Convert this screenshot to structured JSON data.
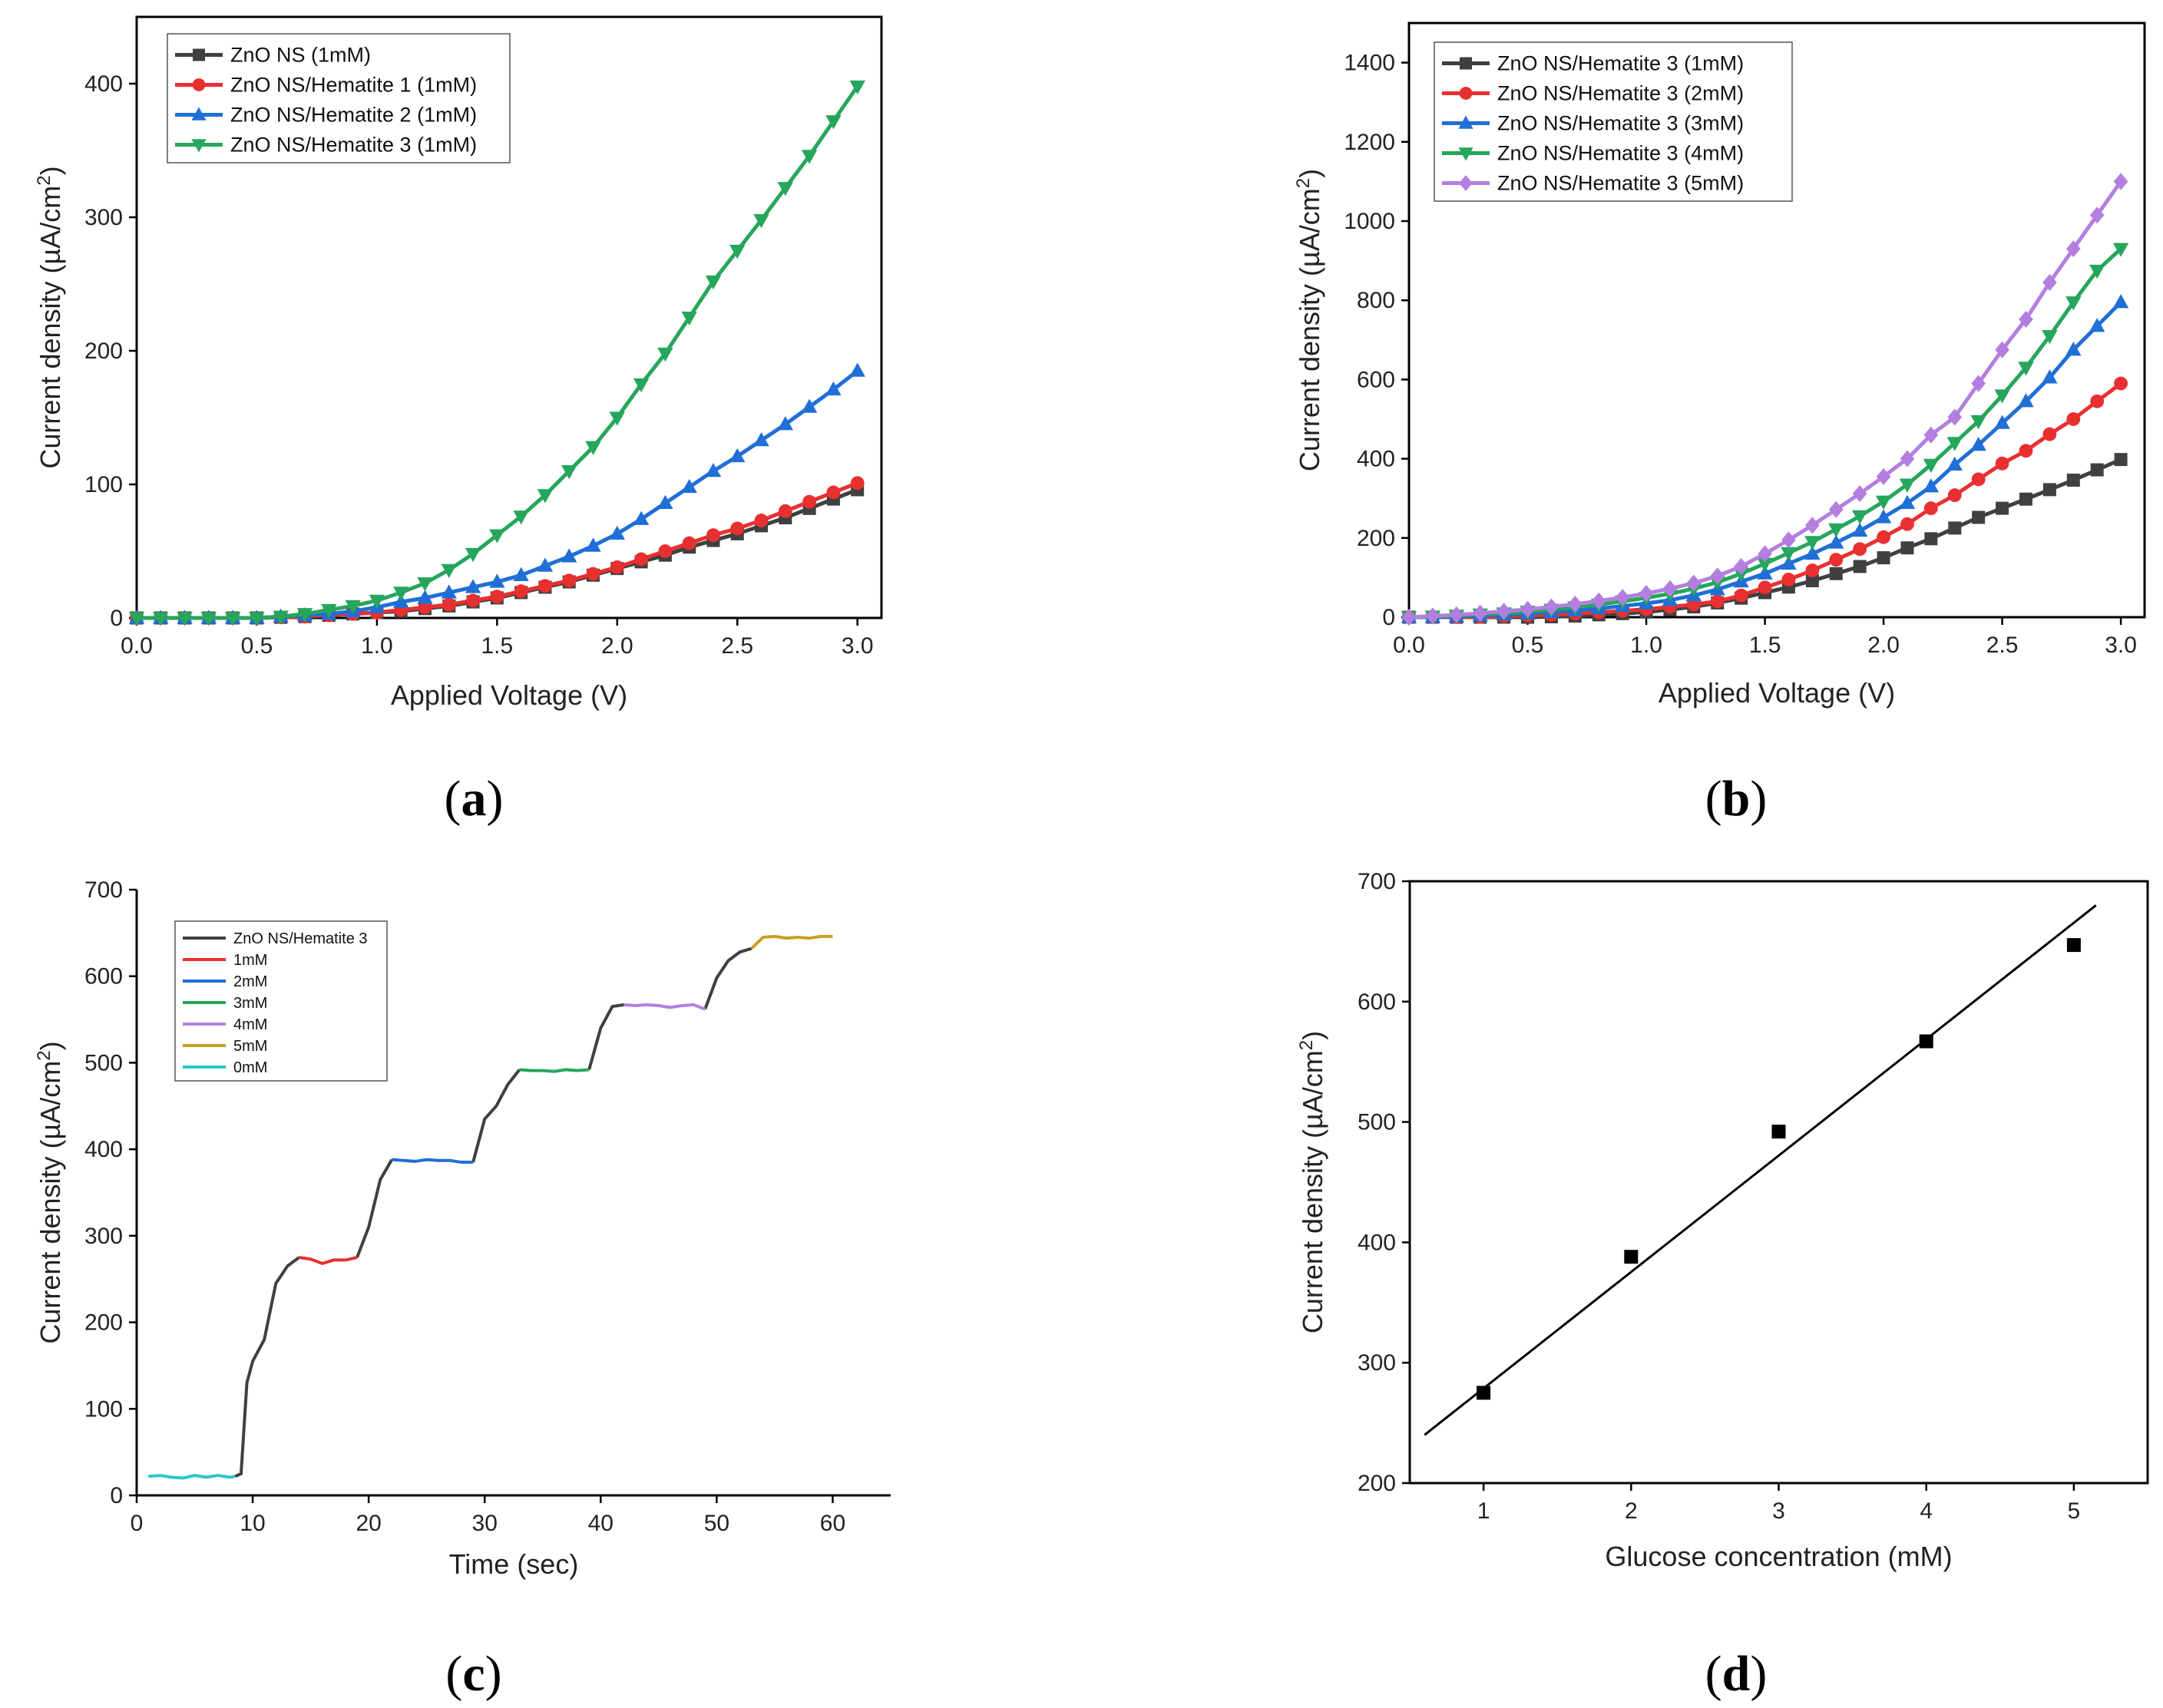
{
  "figure": {
    "panel_labels": [
      {
        "open": "(",
        "letter": "a",
        "close": ")"
      },
      {
        "open": "(",
        "letter": "b",
        "close": ")"
      },
      {
        "open": "(",
        "letter": "c",
        "close": ")"
      },
      {
        "open": "(",
        "letter": "d",
        "close": ")"
      }
    ]
  },
  "chart_data": [
    {
      "id": "a",
      "type": "line",
      "xlabel": "Applied Voltage (V)",
      "ylabel": "Current density (µA/cm²)",
      "xlim": [
        0,
        3.1
      ],
      "ylim": [
        0,
        450
      ],
      "xticks": [
        0.0,
        0.5,
        1.0,
        1.5,
        2.0,
        2.5,
        3.0
      ],
      "xtick_labels": [
        "0.0",
        "0.5",
        "1.0",
        "1.5",
        "2.0",
        "2.5",
        "3.0"
      ],
      "yticks": [
        0,
        100,
        200,
        300,
        400
      ],
      "ytick_labels": [
        "0",
        "100",
        "200",
        "300",
        "400"
      ],
      "legend_position": "top-left",
      "x": [
        0.0,
        0.1,
        0.2,
        0.3,
        0.4,
        0.5,
        0.6,
        0.7,
        0.8,
        0.9,
        1.0,
        1.1,
        1.2,
        1.3,
        1.4,
        1.5,
        1.6,
        1.7,
        1.8,
        1.9,
        2.0,
        2.1,
        2.2,
        2.3,
        2.4,
        2.5,
        2.6,
        2.7,
        2.8,
        2.9,
        3.0
      ],
      "series": [
        {
          "name": "ZnO NS (1mM)",
          "color": "#404040",
          "marker": "square",
          "values": [
            0,
            0,
            0,
            0,
            0,
            0,
            0.5,
            1,
            2,
            3,
            4,
            5,
            7,
            9,
            12,
            15,
            19,
            23,
            27,
            32,
            37,
            42,
            47,
            53,
            58,
            63,
            69,
            75,
            82,
            89,
            96
          ]
        },
        {
          "name": "ZnO NS/Hematite 1 (1mM)",
          "color": "#e83030",
          "marker": "circle",
          "values": [
            0,
            0,
            0,
            0,
            0,
            0,
            0.5,
            1,
            2,
            3,
            4,
            6,
            8,
            10,
            13,
            16,
            20,
            24,
            28,
            33,
            38,
            44,
            50,
            56,
            62,
            67,
            73,
            80,
            87,
            94,
            101
          ]
        },
        {
          "name": "ZnO NS/Hematite 2 (1mM)",
          "color": "#1f6fd6",
          "marker": "triangle-up",
          "values": [
            0,
            0,
            0,
            0,
            0,
            0,
            1,
            2,
            3,
            5,
            8,
            12,
            15,
            19,
            23,
            27,
            32,
            39,
            46,
            54,
            63,
            74,
            86,
            98,
            110,
            121,
            133,
            145,
            158,
            171,
            185
          ]
        },
        {
          "name": "ZnO NS/Hematite 3 (1mM)",
          "color": "#26a65b",
          "marker": "triangle-down",
          "values": [
            0,
            0,
            0,
            0,
            0,
            0,
            1,
            3,
            6,
            9,
            13,
            19,
            26,
            36,
            48,
            62,
            76,
            92,
            110,
            128,
            150,
            175,
            198,
            225,
            252,
            275,
            298,
            322,
            346,
            372,
            398
          ]
        }
      ]
    },
    {
      "id": "b",
      "type": "line",
      "xlabel": "Applied Voltage (V)",
      "ylabel": "Current density (µA/cm²)",
      "xlim": [
        0,
        3.1
      ],
      "ylim": [
        0,
        1500
      ],
      "xticks": [
        0.0,
        0.5,
        1.0,
        1.5,
        2.0,
        2.5,
        3.0
      ],
      "xtick_labels": [
        "0.0",
        "0.5",
        "1.0",
        "1.5",
        "2.0",
        "2.5",
        "3.0"
      ],
      "yticks": [
        0,
        200,
        400,
        600,
        800,
        1000,
        1200,
        1400
      ],
      "ytick_labels": [
        "0",
        "200",
        "400",
        "600",
        "800",
        "1000",
        "1200",
        "1400"
      ],
      "legend_position": "top-left",
      "x": [
        0.0,
        0.1,
        0.2,
        0.3,
        0.4,
        0.5,
        0.6,
        0.7,
        0.8,
        0.9,
        1.0,
        1.1,
        1.2,
        1.3,
        1.4,
        1.5,
        1.6,
        1.7,
        1.8,
        1.9,
        2.0,
        2.1,
        2.2,
        2.3,
        2.4,
        2.5,
        2.6,
        2.7,
        2.8,
        2.9,
        3.0
      ],
      "series": [
        {
          "name": "ZnO NS/Hematite 3 (1mM)",
          "color": "#404040",
          "marker": "square",
          "values": [
            0,
            0,
            0,
            0,
            0,
            0,
            1,
            3,
            6,
            9,
            13,
            19,
            26,
            36,
            48,
            62,
            76,
            92,
            110,
            128,
            150,
            175,
            198,
            225,
            252,
            275,
            298,
            322,
            346,
            372,
            398
          ]
        },
        {
          "name": "ZnO NS/Hematite 3 (2mM)",
          "color": "#e83030",
          "marker": "circle",
          "values": [
            0,
            0,
            0,
            1,
            2,
            4,
            6,
            9,
            12,
            16,
            20,
            26,
            32,
            40,
            55,
            75,
            95,
            118,
            145,
            172,
            202,
            235,
            275,
            308,
            348,
            388,
            420,
            462,
            500,
            545,
            590
          ]
        },
        {
          "name": "ZnO NS/Hematite 3 (3mM)",
          "color": "#1f6fd6",
          "marker": "triangle-up",
          "values": [
            0,
            0,
            2,
            4,
            6,
            9,
            13,
            17,
            22,
            28,
            35,
            43,
            55,
            70,
            90,
            110,
            135,
            160,
            188,
            218,
            252,
            288,
            330,
            385,
            435,
            490,
            545,
            605,
            675,
            735,
            795
          ]
        },
        {
          "name": "ZnO NS/Hematite 3 (4mM)",
          "color": "#26a65b",
          "marker": "triangle-down",
          "values": [
            0,
            2,
            4,
            7,
            10,
            14,
            19,
            25,
            32,
            40,
            49,
            59,
            72,
            88,
            110,
            135,
            162,
            190,
            222,
            255,
            292,
            335,
            385,
            440,
            495,
            560,
            630,
            710,
            795,
            875,
            930
          ]
        },
        {
          "name": "ZnO NS/Hematite 3 (5mM)",
          "color": "#b47ee0",
          "marker": "diamond",
          "values": [
            0,
            3,
            6,
            10,
            15,
            20,
            26,
            33,
            41,
            50,
            60,
            72,
            86,
            104,
            128,
            160,
            195,
            232,
            272,
            312,
            355,
            400,
            460,
            505,
            590,
            675,
            752,
            845,
            930,
            1015,
            1100
          ]
        }
      ]
    },
    {
      "id": "c",
      "type": "line",
      "xlabel": "Time (sec)",
      "ylabel": "Current density (µA/cm²)",
      "xlim": [
        0,
        65
      ],
      "ylim": [
        0,
        700
      ],
      "xticks": [
        0,
        10,
        20,
        30,
        40,
        50,
        60
      ],
      "xtick_labels": [
        "0",
        "10",
        "20",
        "30",
        "40",
        "50",
        "60"
      ],
      "yticks": [
        0,
        100,
        200,
        300,
        400,
        500,
        600,
        700
      ],
      "ytick_labels": [
        "0",
        "100",
        "200",
        "300",
        "400",
        "500",
        "600",
        "700"
      ],
      "legend_position": "top-left",
      "series": [
        {
          "name": "ZnO NS/Hematite 3",
          "color": "#404040",
          "segments": [
            {
              "x": [
                8.5,
                9,
                9.5,
                10,
                11,
                12,
                13,
                14
              ],
              "y": [
                22,
                25,
                130,
                155,
                180,
                245,
                265,
                275
              ]
            },
            {
              "x": [
                19,
                20,
                21,
                22
              ],
              "y": [
                275,
                310,
                365,
                388
              ]
            },
            {
              "x": [
                29,
                30,
                31,
                32,
                33
              ],
              "y": [
                385,
                435,
                450,
                475,
                492
              ]
            },
            {
              "x": [
                39,
                40,
                41,
                42
              ],
              "y": [
                492,
                540,
                565,
                567
              ]
            },
            {
              "x": [
                49,
                50,
                51,
                52,
                53
              ],
              "y": [
                562,
                598,
                618,
                628,
                632
              ]
            }
          ]
        },
        {
          "name": "1mM",
          "color": "#e83030",
          "segments": [
            {
              "x": [
                14,
                15,
                16,
                17,
                18,
                19
              ],
              "y": [
                275,
                273,
                268,
                272,
                272,
                275
              ]
            }
          ]
        },
        {
          "name": "2mM",
          "color": "#1f6fd6",
          "segments": [
            {
              "x": [
                22,
                23,
                24,
                25,
                26,
                27,
                28,
                29
              ],
              "y": [
                388,
                387,
                386,
                388,
                387,
                387,
                385,
                385
              ]
            }
          ]
        },
        {
          "name": "3mM",
          "color": "#26a65b",
          "segments": [
            {
              "x": [
                33,
                34,
                35,
                36,
                37,
                38,
                39
              ],
              "y": [
                492,
                491,
                491,
                490,
                492,
                491,
                492
              ]
            }
          ]
        },
        {
          "name": "4mM",
          "color": "#b47ee0",
          "segments": [
            {
              "x": [
                42,
                43,
                44,
                45,
                46,
                47,
                48,
                49
              ],
              "y": [
                567,
                566,
                567,
                566,
                564,
                566,
                567,
                562
              ]
            }
          ]
        },
        {
          "name": "5mM",
          "color": "#c8a020",
          "segments": [
            {
              "x": [
                53,
                54,
                55,
                56,
                57,
                58,
                59,
                60
              ],
              "y": [
                632,
                645,
                646,
                644,
                645,
                644,
                646,
                646
              ]
            }
          ]
        },
        {
          "name": "0mM",
          "color": "#28c8c8",
          "segments": [
            {
              "x": [
                1,
                2,
                3,
                4,
                5,
                6,
                7,
                8,
                8.5
              ],
              "y": [
                22,
                23,
                21,
                20,
                23,
                21,
                23,
                21,
                22
              ]
            }
          ]
        }
      ]
    },
    {
      "id": "d",
      "type": "scatter",
      "xlabel": "Glucose concentration (mM)",
      "ylabel": "Current density (µA/cm²)",
      "xlim": [
        0.5,
        5.5
      ],
      "ylim": [
        200,
        700
      ],
      "xticks": [
        1,
        2,
        3,
        4,
        5
      ],
      "xtick_labels": [
        "1",
        "2",
        "3",
        "4",
        "5"
      ],
      "yticks": [
        200,
        300,
        400,
        500,
        600,
        700
      ],
      "ytick_labels": [
        "200",
        "300",
        "400",
        "500",
        "600",
        "700"
      ],
      "points": {
        "x": [
          1,
          2,
          3,
          4,
          5
        ],
        "y": [
          275,
          388,
          492,
          567,
          647
        ],
        "color": "#000000",
        "marker": "square"
      },
      "fit": {
        "x": [
          0.6,
          5.15
        ],
        "y": [
          240,
          680
        ],
        "color": "#000000"
      }
    }
  ]
}
